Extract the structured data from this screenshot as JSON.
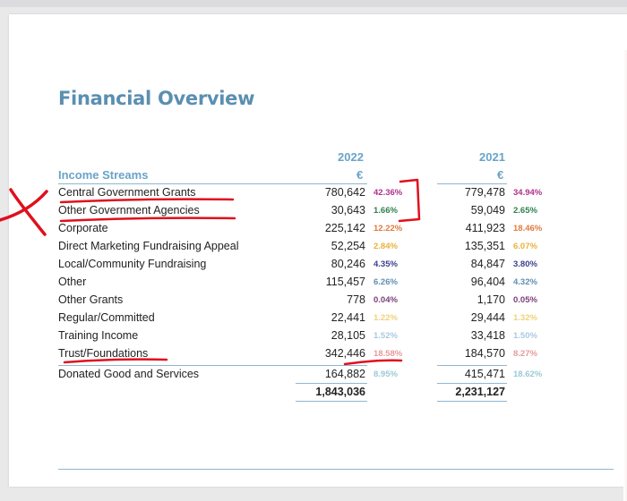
{
  "title": "Financial Overview",
  "years": [
    "2022",
    "2021"
  ],
  "currency": "€",
  "header_label": "Income Streams",
  "rows": [
    {
      "label": "Central Government Grants",
      "v2022": "780,642",
      "p2022": "42.36%",
      "v2021": "779,478",
      "p2021": "34.94%"
    },
    {
      "label": "Other Government Agencies",
      "v2022": "30,643",
      "p2022": "1.66%",
      "v2021": "59,049",
      "p2021": "2.65%"
    },
    {
      "label": "Corporate",
      "v2022": "225,142",
      "p2022": "12.22%",
      "v2021": "411,923",
      "p2021": "18.46%"
    },
    {
      "label": "Direct Marketing Fundraising Appeal",
      "v2022": "52,254",
      "p2022": "2.84%",
      "v2021": "135,351",
      "p2021": "6.07%"
    },
    {
      "label": "Local/Community Fundraising",
      "v2022": "80,246",
      "p2022": "4.35%",
      "v2021": "84,847",
      "p2021": "3.80%"
    },
    {
      "label": "Other",
      "v2022": "115,457",
      "p2022": "6.26%",
      "v2021": "96,404",
      "p2021": "4.32%"
    },
    {
      "label": "Other Grants",
      "v2022": "778",
      "p2022": "0.04%",
      "v2021": "1,170",
      "p2021": "0.05%"
    },
    {
      "label": "Regular/Committed",
      "v2022": "22,441",
      "p2022": "1.22%",
      "v2021": "29,444",
      "p2021": "1.32%"
    },
    {
      "label": "Training Income",
      "v2022": "28,105",
      "p2022": "1.52%",
      "v2021": "33,418",
      "p2021": "1.50%"
    },
    {
      "label": "Trust/Foundations",
      "v2022": "342,446",
      "p2022": "18.58%",
      "v2021": "184,570",
      "p2021": "8.27%"
    },
    {
      "label": "Donated Good and Services",
      "v2022": "164,882",
      "p2022": "8.95%",
      "v2021": "415,471",
      "p2021": "18.62%"
    }
  ],
  "totals": {
    "v2022": "1,843,036",
    "v2021": "2,231,127"
  },
  "pct_colors": [
    "#b0318a",
    "#2f7f4f",
    "#e07a3f",
    "#e8b23a",
    "#3c3f8f",
    "#5f8fb3",
    "#7a3f7a",
    "#f0d27a",
    "#a9c9e3",
    "#e89a9a",
    "#9bc9d6"
  ],
  "annotation_color": "#e0101c"
}
